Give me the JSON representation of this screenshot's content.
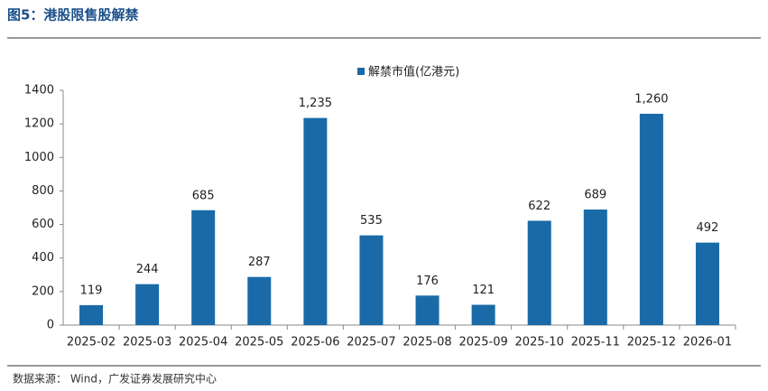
{
  "chart_data": {
    "type": "bar",
    "title": "图5：港股限售股解禁",
    "source": "数据来源： Wind，广发证券发展研究中心",
    "categories": [
      "2025-02",
      "2025-03",
      "2025-04",
      "2025-05",
      "2025-06",
      "2025-07",
      "2025-08",
      "2025-09",
      "2025-10",
      "2025-11",
      "2025-12",
      "2026-01"
    ],
    "series": [
      {
        "name": "解禁市值(亿港元)",
        "color": "#1a6aa8",
        "values": [
          119,
          244,
          685,
          287,
          1235,
          535,
          176,
          121,
          622,
          689,
          1260,
          492
        ],
        "value_labels": [
          "119",
          "244",
          "685",
          "287",
          "1,235",
          "535",
          "176",
          "121",
          "622",
          "689",
          "1,260",
          "492"
        ]
      }
    ],
    "ylim": [
      0,
      1400
    ],
    "yticks": [
      0,
      200,
      400,
      600,
      800,
      1000,
      1200,
      1400
    ],
    "legend": "top"
  }
}
